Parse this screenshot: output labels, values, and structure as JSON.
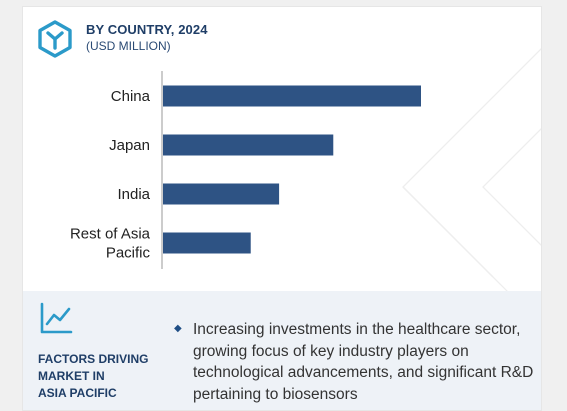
{
  "header": {
    "title": "BY COUNTRY, 2024",
    "subtitle": "(USD MILLION)",
    "logo_icon": "hexagon-logo-icon"
  },
  "chart_data": {
    "type": "bar",
    "orientation": "horizontal",
    "categories": [
      "China",
      "Japan",
      "India",
      "Rest of Asia Pacific"
    ],
    "values": [
      100,
      66,
      45,
      34
    ],
    "bar_color": "#2e5384",
    "grid": false,
    "legend": "none"
  },
  "factors": {
    "icon": "trend-chart-icon",
    "heading": "FACTORS DRIVING\nMARKET IN\nASIA PACIFIC",
    "bullet": "Increasing investments in the healthcare sector, growing focus of key industry players on technological advancements, and significant R&D pertaining to biosensors",
    "bullet_icon": "diamond-bullet-icon"
  },
  "colors": {
    "accent": "#1f3e67",
    "bar": "#2e5384",
    "logo": "#2b9ac9"
  }
}
